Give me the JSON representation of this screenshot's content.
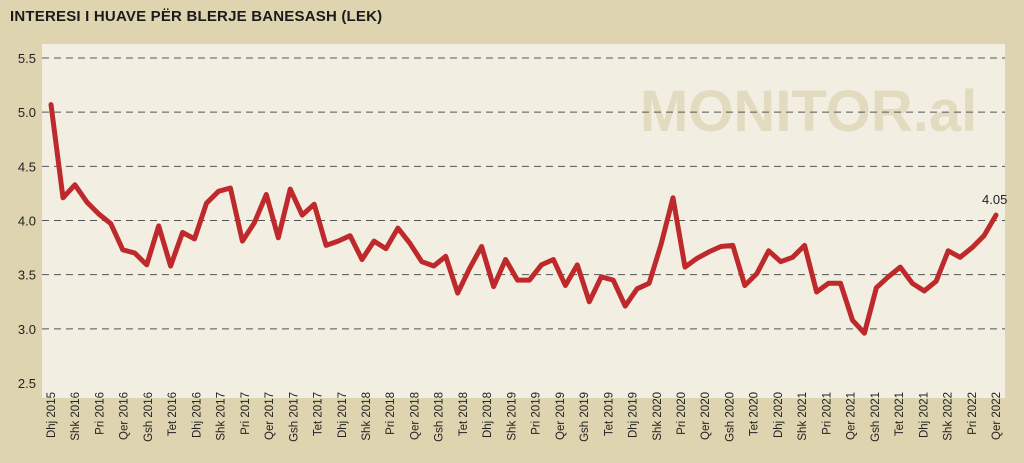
{
  "chart_data": {
    "type": "line",
    "title": "INTERESI I HUAVE PËR BLERJE BANESASH (LEK)",
    "watermark": "MONITOR.al",
    "colors": {
      "line": "#be2a2c",
      "plot_bg": "#f2eee2",
      "page_bg": "#dfd4b0"
    },
    "ylim": [
      2.5,
      5.5
    ],
    "yticks": [
      "5.5",
      "5.0",
      "4.5",
      "4.0",
      "3.5",
      "3.0",
      "2.5"
    ],
    "grid": "horizontal dashed",
    "x_labels": [
      "Dhj 2015",
      "Shk 2016",
      "Pri 2016",
      "Qer 2016",
      "Gsh 2016",
      "Tet 2016",
      "Dhj 2016",
      "Shk 2017",
      "Pri 2017",
      "Qer 2017",
      "Gsh 2017",
      "Tet 2017",
      "Dhj 2017",
      "Shk 2018",
      "Pri 2018",
      "Qer 2018",
      "Gsh 2018",
      "Tet 2018",
      "Dhj 2018",
      "Shk 2019",
      "Pri 2019",
      "Qer 2019",
      "Gsh 2019",
      "Tet 2019",
      "Dhj 2019",
      "Shk 2020",
      "Pri 2020",
      "Qer 2020",
      "Gsh 2020",
      "Tet 2020",
      "Dhj 2020",
      "Shk 2021",
      "Pri 2021",
      "Qer 2021",
      "Gsh 2021",
      "Tet 2021",
      "Dhj 2021",
      "Shk 2022",
      "Pri 2022",
      "Qer 2022"
    ],
    "series": [
      {
        "values": [
          5.07,
          4.21,
          4.33,
          4.17,
          4.06,
          3.97,
          3.73,
          3.7,
          3.59,
          3.95,
          3.58,
          3.89,
          3.83,
          4.16,
          4.27,
          4.3,
          3.81,
          3.98,
          4.24,
          3.84,
          4.29,
          4.05,
          4.15,
          3.77,
          3.81,
          3.86,
          3.64,
          3.81,
          3.74,
          3.93,
          3.79,
          3.62,
          3.58,
          3.67,
          3.33,
          3.56,
          3.76,
          3.39,
          3.64,
          3.45,
          3.45,
          3.59,
          3.64,
          3.4,
          3.59,
          3.25,
          3.48,
          3.45,
          3.21,
          3.37,
          3.42,
          3.78,
          4.21,
          3.57,
          3.65,
          3.71,
          3.76,
          3.77,
          3.4,
          3.51,
          3.72,
          3.62,
          3.66,
          3.77,
          3.34,
          3.42,
          3.42,
          3.08,
          2.96,
          3.38,
          3.48,
          3.57,
          3.42,
          3.35,
          3.44,
          3.72,
          3.66,
          3.75,
          3.86,
          4.05
        ]
      }
    ],
    "annotation": "4.05"
  }
}
